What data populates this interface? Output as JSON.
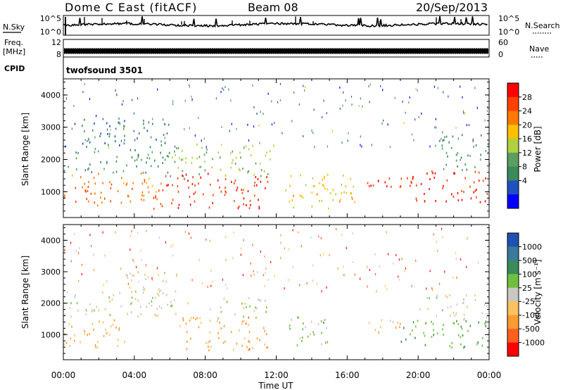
{
  "header": {
    "station": "Dome C East (fitACF)",
    "beam": "Beam 08",
    "date": "20/Sep/2013"
  },
  "strips": {
    "nsky_label": "N.Sky",
    "nsky_ticks": [
      "10^5",
      "10^0"
    ],
    "nsearch_label": "N.Search",
    "nsearch_ticks": [
      "10^5",
      "10^0"
    ],
    "freq_label": "Freq.",
    "freq_unit": "[MHz]",
    "freq_ticks": [
      "12",
      "8"
    ],
    "nave_label": "Nave",
    "nave_ticks": [
      "60",
      "0"
    ],
    "cpid_label": "CPID",
    "cpid_value": "twofsound 3501"
  },
  "colorbars": {
    "power": {
      "label": "Power [dB]",
      "ticks": [
        "28",
        "24",
        "20",
        "16",
        "12",
        "8",
        "4"
      ],
      "colors": [
        "#ff0000",
        "#ff4000",
        "#ff7a00",
        "#ffc000",
        "#b0d040",
        "#5a9e60",
        "#3a8a5a",
        "#2050c0",
        "#0000ff"
      ]
    },
    "velocity": {
      "label": "Velocity [m s⁻¹]",
      "ticks": [
        "1000",
        "500",
        "100",
        "25",
        "-25",
        "-100",
        "-500",
        "-1000"
      ],
      "colors": [
        "#2050b0",
        "#3a7a9a",
        "#3a8a5a",
        "#70c040",
        "#c8c8c0",
        "#ffc060",
        "#ff9a30",
        "#ff6020",
        "#ff0000"
      ]
    }
  },
  "chart_data": [
    {
      "type": "heatmap",
      "title": "Power",
      "ylabel": "Slant Range [km]",
      "xlabel": "Time UT",
      "ylim": [
        200,
        4500
      ],
      "yticks": [
        1000,
        2000,
        3000,
        4000
      ],
      "xticks": [
        "00:00",
        "04:00",
        "08:00",
        "12:00",
        "16:00",
        "20:00",
        "00:00"
      ],
      "colorbar_range": [
        0,
        30
      ],
      "scatter_regions": [
        {
          "t0": 0.0,
          "t1": 5.5,
          "r0": 600,
          "r1": 1600,
          "value": 22
        },
        {
          "t0": 0.0,
          "t1": 6.0,
          "r0": 1600,
          "r1": 2400,
          "value": 10
        },
        {
          "t0": 1.0,
          "t1": 6.0,
          "r0": 2400,
          "r1": 3300,
          "value": 8
        },
        {
          "t0": 5.0,
          "t1": 11.5,
          "r0": 500,
          "r1": 1600,
          "value": 26
        },
        {
          "t0": 6.0,
          "t1": 12.0,
          "r0": 1500,
          "r1": 2500,
          "value": 14
        },
        {
          "t0": 12.5,
          "t1": 16.5,
          "r0": 500,
          "r1": 1600,
          "value": 18
        },
        {
          "t0": 17.0,
          "t1": 19.5,
          "r0": 1000,
          "r1": 1500,
          "value": 26
        },
        {
          "t0": 19.5,
          "t1": 24.0,
          "r0": 700,
          "r1": 1700,
          "value": 27
        },
        {
          "t0": 21.0,
          "t1": 24.0,
          "r0": 1700,
          "r1": 2800,
          "value": 10
        }
      ]
    },
    {
      "type": "heatmap",
      "title": "Velocity",
      "ylabel": "Slant Range [km]",
      "xlabel": "Time UT",
      "ylim": [
        200,
        4500
      ],
      "yticks": [
        1000,
        2000,
        3000,
        4000
      ],
      "xticks": [
        "00:00",
        "04:00",
        "08:00",
        "12:00",
        "16:00",
        "20:00",
        "00:00"
      ],
      "colorbar_range": [
        -1000,
        1000
      ],
      "scatter_regions": [
        {
          "t0": 0.0,
          "t1": 3.5,
          "r0": 600,
          "r1": 1500,
          "value": -300
        },
        {
          "t0": 0.0,
          "t1": 7.0,
          "r0": 1600,
          "r1": 2400,
          "value": 0
        },
        {
          "t0": 3.5,
          "t1": 6.5,
          "r0": 2400,
          "r1": 3000,
          "value": -200
        },
        {
          "t0": 6.5,
          "t1": 11.5,
          "r0": 500,
          "r1": 1600,
          "value": -400
        },
        {
          "t0": 8.0,
          "t1": 11.5,
          "r0": 1600,
          "r1": 2200,
          "value": 0
        },
        {
          "t0": 12.5,
          "t1": 15.0,
          "r0": 600,
          "r1": 1600,
          "value": 200
        },
        {
          "t0": 17.0,
          "t1": 19.0,
          "r0": 1000,
          "r1": 1500,
          "value": -250
        },
        {
          "t0": 19.0,
          "t1": 24.0,
          "r0": 600,
          "r1": 1500,
          "value": 300
        },
        {
          "t0": 20.0,
          "t1": 24.0,
          "r0": 1500,
          "r1": 2300,
          "value": 0
        }
      ]
    }
  ]
}
